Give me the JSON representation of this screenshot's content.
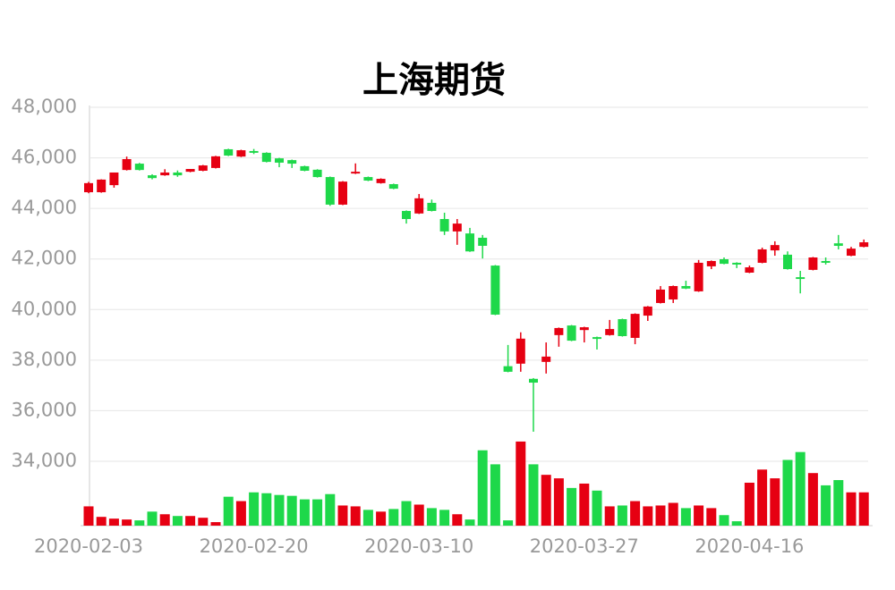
{
  "chart_data": {
    "type": "candlestick",
    "title": "上海期货",
    "categories": [
      "2020-02-03",
      null,
      null,
      null,
      null,
      null,
      null,
      null,
      null,
      null,
      null,
      null,
      null,
      "2020-02-20",
      null,
      null,
      null,
      null,
      null,
      null,
      null,
      null,
      null,
      null,
      null,
      null,
      "2020-03-10",
      null,
      null,
      null,
      null,
      null,
      null,
      null,
      null,
      null,
      null,
      null,
      null,
      "2020-03-27",
      null,
      null,
      null,
      null,
      null,
      null,
      null,
      null,
      null,
      null,
      null,
      null,
      "2020-04-16",
      null,
      null,
      null,
      null,
      null,
      null,
      null,
      null,
      null
    ],
    "open": [
      44640,
      44640,
      44920,
      45520,
      45770,
      45310,
      45310,
      45420,
      45450,
      45490,
      45600,
      46340,
      46050,
      46270,
      46200,
      45980,
      45910,
      45670,
      45530,
      45240,
      44150,
      45380,
      45240,
      45000,
      44960,
      43900,
      43800,
      44220,
      43580,
      43090,
      43010,
      42840,
      41740,
      37760,
      37860,
      37260,
      37930,
      38990,
      39370,
      39190,
      38910,
      38990,
      39620,
      38880,
      39760,
      40260,
      40400,
      40930,
      40720,
      41710,
      41990,
      41850,
      41460,
      41850,
      42340,
      42170,
      41280,
      41570,
      41920,
      42620,
      42130,
      42480
    ],
    "high": [
      45050,
      45150,
      45420,
      46050,
      45800,
      45350,
      45550,
      45500,
      45560,
      45720,
      46080,
      46360,
      46320,
      46350,
      46220,
      46000,
      45930,
      45690,
      45550,
      45260,
      45080,
      45780,
      45260,
      45190,
      44980,
      43920,
      44570,
      44350,
      43830,
      43580,
      43230,
      42950,
      41760,
      38600,
      39100,
      37290,
      38700,
      39290,
      39390,
      39320,
      38930,
      39590,
      39640,
      39850,
      40140,
      40930,
      40950,
      41140,
      41960,
      41940,
      42060,
      41870,
      41740,
      42450,
      42700,
      42300,
      41530,
      42080,
      42060,
      42950,
      42480,
      42770
    ],
    "low": [
      44600,
      44620,
      44820,
      45500,
      45500,
      45150,
      45290,
      45250,
      45430,
      45470,
      45580,
      46070,
      46030,
      46150,
      45820,
      45630,
      45600,
      45470,
      45220,
      44100,
      44130,
      45360,
      45080,
      44980,
      44760,
      43400,
      43780,
      43880,
      42950,
      42560,
      42280,
      42020,
      39780,
      37520,
      37540,
      35170,
      37470,
      38530,
      38750,
      38700,
      38420,
      38970,
      38930,
      38630,
      39550,
      40240,
      40260,
      40810,
      40700,
      41600,
      41790,
      41640,
      41440,
      41830,
      42130,
      41580,
      40640,
      41550,
      41780,
      42380,
      42110,
      42460
    ],
    "close": [
      45000,
      45140,
      45420,
      45950,
      45520,
      45200,
      45420,
      45310,
      45560,
      45700,
      46060,
      46090,
      46300,
      46200,
      45840,
      45810,
      45770,
      45490,
      45240,
      44150,
      45060,
      45450,
      45100,
      45170,
      44780,
      43580,
      44400,
      43900,
      43090,
      43400,
      42300,
      42520,
      39800,
      37540,
      38850,
      37110,
      38140,
      39270,
      38770,
      39300,
      38840,
      39230,
      38950,
      39830,
      40120,
      40790,
      40930,
      40830,
      41850,
      41920,
      41810,
      41780,
      41670,
      42380,
      42550,
      41600,
      41210,
      42060,
      41850,
      42520,
      42410,
      42660
    ],
    "volume": [
      22,
      10,
      8,
      7,
      6,
      16,
      13,
      11,
      11,
      9,
      4,
      33,
      28,
      38,
      37,
      35,
      34,
      30,
      30,
      36,
      23,
      22,
      18,
      16,
      19,
      28,
      24,
      20,
      18,
      13,
      7,
      86,
      70,
      6,
      96,
      70,
      58,
      54,
      43,
      48,
      40,
      22,
      23,
      28,
      22,
      23,
      26,
      20,
      23,
      20,
      12,
      5,
      49,
      64,
      54,
      75,
      84,
      60,
      46,
      52,
      38,
      38
    ],
    "volume_ylim": [
      0,
      100
    ],
    "up_color": "#e60012",
    "down_color": "#1ed84a",
    "ylim": [
      34000,
      48000
    ],
    "yticks": [
      {
        "value": 34000,
        "label": "34,000"
      },
      {
        "value": 36000,
        "label": "36,000"
      },
      {
        "value": 38000,
        "label": "38,000"
      },
      {
        "value": 40000,
        "label": "40,000"
      },
      {
        "value": 42000,
        "label": "42,000"
      },
      {
        "value": 44000,
        "label": "44,000"
      },
      {
        "value": 46000,
        "label": "46,000"
      },
      {
        "value": 48000,
        "label": "48,000"
      }
    ],
    "grid": true
  }
}
